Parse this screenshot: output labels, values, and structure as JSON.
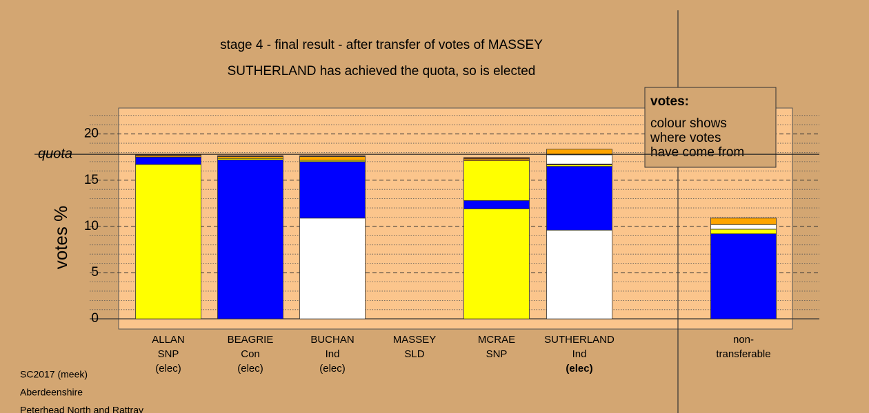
{
  "chart_data": {
    "type": "stacked-bar",
    "title": "stage 4 - final result - after transfer of votes of MASSEY",
    "subtitle": "SUTHERLAND has achieved the quota, so is elected",
    "ylabel": "votes %",
    "ylim": [
      -1.1,
      22.8
    ],
    "yticks": [
      0,
      5,
      10,
      15,
      20
    ],
    "minor_yticks": [
      1,
      2,
      3,
      4,
      6,
      7,
      8,
      9,
      11,
      12,
      13,
      14,
      16,
      17,
      18,
      19,
      21,
      22
    ],
    "quota": {
      "label": "quota",
      "value": 17.8
    },
    "legend": {
      "title": "votes:",
      "lines": [
        "colour shows",
        "where votes",
        "have come from"
      ]
    },
    "categories": [
      {
        "lines": [
          "ALLAN",
          "SNP",
          "(elec)"
        ],
        "segments": [
          {
            "color": "#ffff00",
            "value": 16.7
          },
          {
            "color": "#0000ff",
            "value": 0.8
          },
          {
            "color": "#ffa500",
            "value": 0.15
          },
          {
            "color": "#8b4513",
            "value": 0.1
          }
        ]
      },
      {
        "lines": [
          "BEAGRIE",
          "Con",
          "(elec)"
        ],
        "segments": [
          {
            "color": "#0000ff",
            "value": 17.2
          },
          {
            "color": "#ffff00",
            "value": 0.15
          },
          {
            "color": "#ffa500",
            "value": 0.2
          },
          {
            "color": "#8b4513",
            "value": 0.1
          }
        ]
      },
      {
        "lines": [
          "BUCHAN",
          "Ind",
          "(elec)"
        ],
        "segments": [
          {
            "color": "#ffffff",
            "value": 10.9
          },
          {
            "color": "#0000ff",
            "value": 6.1
          },
          {
            "color": "#ffff00",
            "value": 0.15
          },
          {
            "color": "#ffa500",
            "value": 0.4
          },
          {
            "color": "#8b4513",
            "value": 0.1
          }
        ]
      },
      {
        "lines": [
          "MASSEY",
          "SLD"
        ],
        "segments": []
      },
      {
        "lines": [
          "MCRAE",
          "SNP"
        ],
        "segments": [
          {
            "color": "#ffff00",
            "value": 11.9
          },
          {
            "color": "#0000ff",
            "value": 0.9
          },
          {
            "color": "#ffff00",
            "value": 4.3
          },
          {
            "color": "#ffa500",
            "value": 0.2
          },
          {
            "color": "#8b4513",
            "value": 0.15
          }
        ]
      },
      {
        "lines": [
          "SUTHERLAND",
          "Ind",
          "(elec)"
        ],
        "bold_last": true,
        "segments": [
          {
            "color": "#ffffff",
            "value": 9.6
          },
          {
            "color": "#0000ff",
            "value": 6.9
          },
          {
            "color": "#ffff00",
            "value": 0.15
          },
          {
            "color": "#8b4513",
            "value": 0.1
          },
          {
            "color": "#ffffff",
            "value": 1.0
          },
          {
            "color": "#ffa500",
            "value": 0.6
          }
        ]
      },
      {
        "lines": [
          "non-",
          "transferable"
        ],
        "separate": true,
        "segments": [
          {
            "color": "#0000ff",
            "value": 9.2
          },
          {
            "color": "#ffff00",
            "value": 0.5
          },
          {
            "color": "#ffffff",
            "value": 0.5
          },
          {
            "color": "#ffa500",
            "value": 0.7
          }
        ]
      }
    ],
    "footer": [
      "SC2017 (meek)",
      "Aberdeenshire",
      "Peterhead North and Rattray"
    ]
  }
}
